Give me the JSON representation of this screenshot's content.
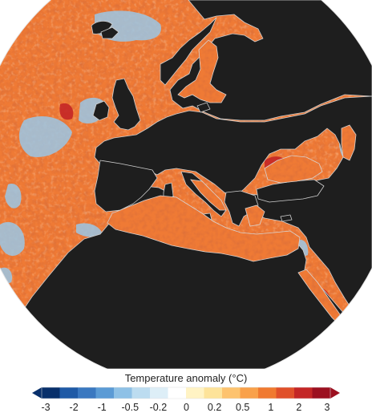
{
  "legend": {
    "title": "Temperature anomaly (°C)",
    "ticks": [
      "-3",
      "-2",
      "-1",
      "-0.5",
      "-0.2",
      "0",
      "0.2",
      "0.5",
      "1",
      "2",
      "3"
    ],
    "colors": [
      "#08306b",
      "#1f5aa6",
      "#3a78c0",
      "#5b9bd5",
      "#8ec1e6",
      "#bcdcf0",
      "#ddeef7",
      "#ffffff",
      "#fff3c4",
      "#fde39a",
      "#fdc36e",
      "#f9a14a",
      "#f07a30",
      "#e0502a",
      "#c42626",
      "#9c1020"
    ],
    "range": [
      -3,
      3
    ]
  },
  "map": {
    "land_color": "#1e1e1e",
    "ocean_base_color": "#ef7a35",
    "cool_anomaly_color": "#9cc7e6",
    "hot_anomaly_color": "#c42626",
    "sea_glare_color": "#ffd9b0"
  }
}
